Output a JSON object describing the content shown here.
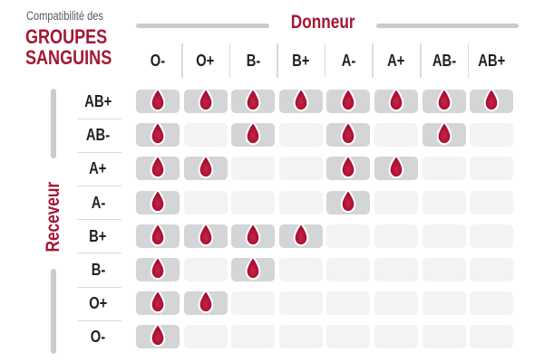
{
  "header": {
    "subtitle": "Compatibilité des",
    "title_line1": "GROUPES",
    "title_line2": "SANGUINS",
    "donor_axis_label": "Donneur",
    "receiver_axis_label": "Receveur"
  },
  "chart_data": {
    "type": "table",
    "title": "Compatibilité des groupes sanguins",
    "columns_axis_label": "Donneur",
    "rows_axis_label": "Receveur",
    "columns": [
      "O-",
      "O+",
      "B-",
      "B+",
      "A-",
      "A+",
      "AB-",
      "AB+"
    ],
    "rows": [
      "AB+",
      "AB-",
      "A+",
      "A-",
      "B+",
      "B-",
      "O+",
      "O-"
    ],
    "matrix": [
      [
        1,
        1,
        1,
        1,
        1,
        1,
        1,
        1
      ],
      [
        1,
        0,
        1,
        0,
        1,
        0,
        1,
        0
      ],
      [
        1,
        1,
        0,
        0,
        1,
        1,
        0,
        0
      ],
      [
        1,
        0,
        0,
        0,
        1,
        0,
        0,
        0
      ],
      [
        1,
        1,
        1,
        1,
        0,
        0,
        0,
        0
      ],
      [
        1,
        0,
        1,
        0,
        0,
        0,
        0,
        0
      ],
      [
        1,
        1,
        0,
        0,
        0,
        0,
        0,
        0
      ],
      [
        1,
        0,
        0,
        0,
        0,
        0,
        0,
        0
      ]
    ],
    "cell_marker": "blood-drop-icon",
    "marker_meaning": "compatible"
  },
  "colors": {
    "accent_red": "#A31734",
    "drop_red": "#A50D2E",
    "drop_highlight": "#C7254A",
    "subtitle_gray": "#58595B",
    "label_dark": "#231F20",
    "cell_filled": "#D3D5D6",
    "cell_empty": "#F2F3F3",
    "axis_line_gray": "#C9CBCD",
    "separator_gray": "#DADBDD"
  }
}
